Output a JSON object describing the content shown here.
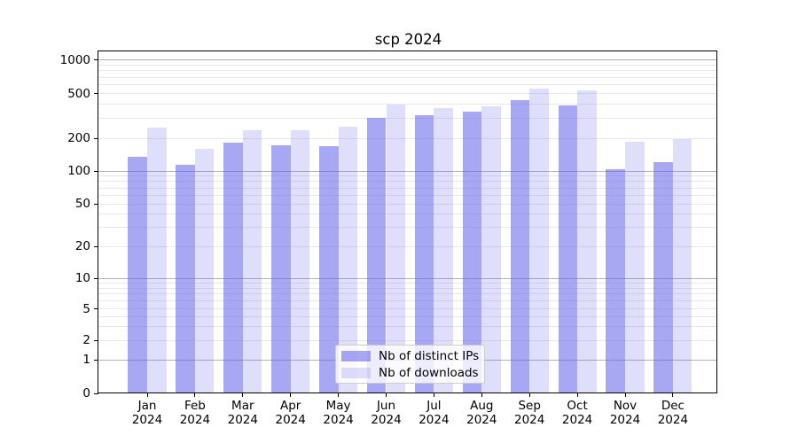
{
  "chart_data": {
    "type": "bar",
    "title": "scp 2024",
    "categories": [
      "Jan",
      "Feb",
      "Mar",
      "Apr",
      "May",
      "Jun",
      "Jul",
      "Aug",
      "Sep",
      "Oct",
      "Nov",
      "Dec"
    ],
    "category_year_line": "2024",
    "series": [
      {
        "name": "Nb of distinct IPs",
        "values": [
          135,
          115,
          183,
          172,
          170,
          305,
          322,
          345,
          440,
          395,
          104,
          120
        ]
      },
      {
        "name": "Nb of downloads",
        "values": [
          250,
          160,
          235,
          235,
          255,
          398,
          370,
          385,
          555,
          535,
          185,
          197
        ]
      }
    ],
    "yticks": [
      0,
      1,
      2,
      5,
      10,
      20,
      50,
      100,
      200,
      500,
      1000
    ],
    "ylabel": "",
    "xlabel": "",
    "ylim": [
      0,
      1200
    ],
    "y_scale": "log-like (0,1,2,5,10,20,50,100,200,500,1000)",
    "grid": "horizontal major and minor gridlines",
    "legend_position": "lower center",
    "colors": {
      "distinct_ips_fill": "#5f5feb8c",
      "downloads_fill": "#5f5feb33",
      "gridline_major": "#b3b3b3",
      "gridline_minor": "#e8e8e8",
      "axis": "#000000",
      "legend_border": "#cccccc"
    }
  }
}
